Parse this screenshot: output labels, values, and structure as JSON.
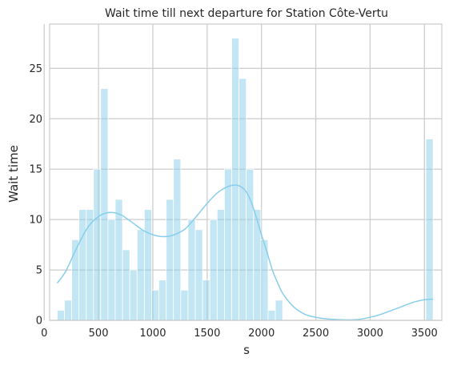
{
  "chart_data": {
    "type": "bar",
    "title": "Wait time till next departure for Station Côte-Vertu",
    "xlabel": "s",
    "ylabel": "Wait time",
    "xlim": [
      50,
      3660
    ],
    "ylim": [
      0,
      29.4
    ],
    "x_ticks": [
      0,
      500,
      1000,
      1500,
      2000,
      2500,
      3000,
      3500
    ],
    "y_ticks": [
      0,
      5,
      10,
      15,
      20,
      25
    ],
    "grid": true,
    "bar_color": "#87ceeb",
    "bar_edge_color": "#ffffff",
    "kde_color": "#87ceeb",
    "bins": [
      {
        "x0": 120,
        "x1": 186,
        "count": 1
      },
      {
        "x0": 186,
        "x1": 253,
        "count": 2
      },
      {
        "x0": 253,
        "x1": 320,
        "count": 8
      },
      {
        "x0": 320,
        "x1": 387,
        "count": 11
      },
      {
        "x0": 387,
        "x1": 454,
        "count": 11
      },
      {
        "x0": 454,
        "x1": 520,
        "count": 15
      },
      {
        "x0": 520,
        "x1": 587,
        "count": 23
      },
      {
        "x0": 587,
        "x1": 654,
        "count": 10
      },
      {
        "x0": 654,
        "x1": 721,
        "count": 12
      },
      {
        "x0": 721,
        "x1": 788,
        "count": 7
      },
      {
        "x0": 788,
        "x1": 855,
        "count": 5
      },
      {
        "x0": 855,
        "x1": 922,
        "count": 9
      },
      {
        "x0": 922,
        "x1": 989,
        "count": 11
      },
      {
        "x0": 989,
        "x1": 1056,
        "count": 3
      },
      {
        "x0": 1056,
        "x1": 1123,
        "count": 4
      },
      {
        "x0": 1123,
        "x1": 1190,
        "count": 12
      },
      {
        "x0": 1190,
        "x1": 1257,
        "count": 16
      },
      {
        "x0": 1257,
        "x1": 1324,
        "count": 3
      },
      {
        "x0": 1324,
        "x1": 1391,
        "count": 10
      },
      {
        "x0": 1391,
        "x1": 1458,
        "count": 9
      },
      {
        "x0": 1458,
        "x1": 1525,
        "count": 4
      },
      {
        "x0": 1525,
        "x1": 1592,
        "count": 10
      },
      {
        "x0": 1592,
        "x1": 1659,
        "count": 11
      },
      {
        "x0": 1659,
        "x1": 1726,
        "count": 15
      },
      {
        "x0": 1726,
        "x1": 1793,
        "count": 28
      },
      {
        "x0": 1793,
        "x1": 1860,
        "count": 24
      },
      {
        "x0": 1860,
        "x1": 1927,
        "count": 15
      },
      {
        "x0": 1927,
        "x1": 1994,
        "count": 11
      },
      {
        "x0": 1994,
        "x1": 2061,
        "count": 8
      },
      {
        "x0": 2061,
        "x1": 2128,
        "count": 1
      },
      {
        "x0": 2128,
        "x1": 2195,
        "count": 2
      },
      {
        "x0": 3513,
        "x1": 3580,
        "count": 18
      }
    ],
    "kde_points": [
      [
        120,
        3.7
      ],
      [
        200,
        4.9
      ],
      [
        300,
        7.2
      ],
      [
        400,
        9.2
      ],
      [
        500,
        10.3
      ],
      [
        600,
        10.7
      ],
      [
        700,
        10.5
      ],
      [
        800,
        9.8
      ],
      [
        900,
        9.0
      ],
      [
        1000,
        8.5
      ],
      [
        1100,
        8.3
      ],
      [
        1200,
        8.5
      ],
      [
        1300,
        9.1
      ],
      [
        1400,
        10.3
      ],
      [
        1500,
        11.6
      ],
      [
        1600,
        12.7
      ],
      [
        1700,
        13.3
      ],
      [
        1780,
        13.4
      ],
      [
        1850,
        12.9
      ],
      [
        1900,
        11.9
      ],
      [
        1950,
        10.3
      ],
      [
        2000,
        8.5
      ],
      [
        2050,
        6.8
      ],
      [
        2100,
        5.0
      ],
      [
        2150,
        3.7
      ],
      [
        2200,
        2.6
      ],
      [
        2300,
        1.3
      ],
      [
        2400,
        0.6
      ],
      [
        2500,
        0.3
      ],
      [
        2600,
        0.15
      ],
      [
        2700,
        0.08
      ],
      [
        2800,
        0.05
      ],
      [
        2900,
        0.1
      ],
      [
        3000,
        0.3
      ],
      [
        3100,
        0.6
      ],
      [
        3200,
        1.0
      ],
      [
        3300,
        1.4
      ],
      [
        3400,
        1.8
      ],
      [
        3500,
        2.05
      ],
      [
        3580,
        2.1
      ]
    ]
  }
}
